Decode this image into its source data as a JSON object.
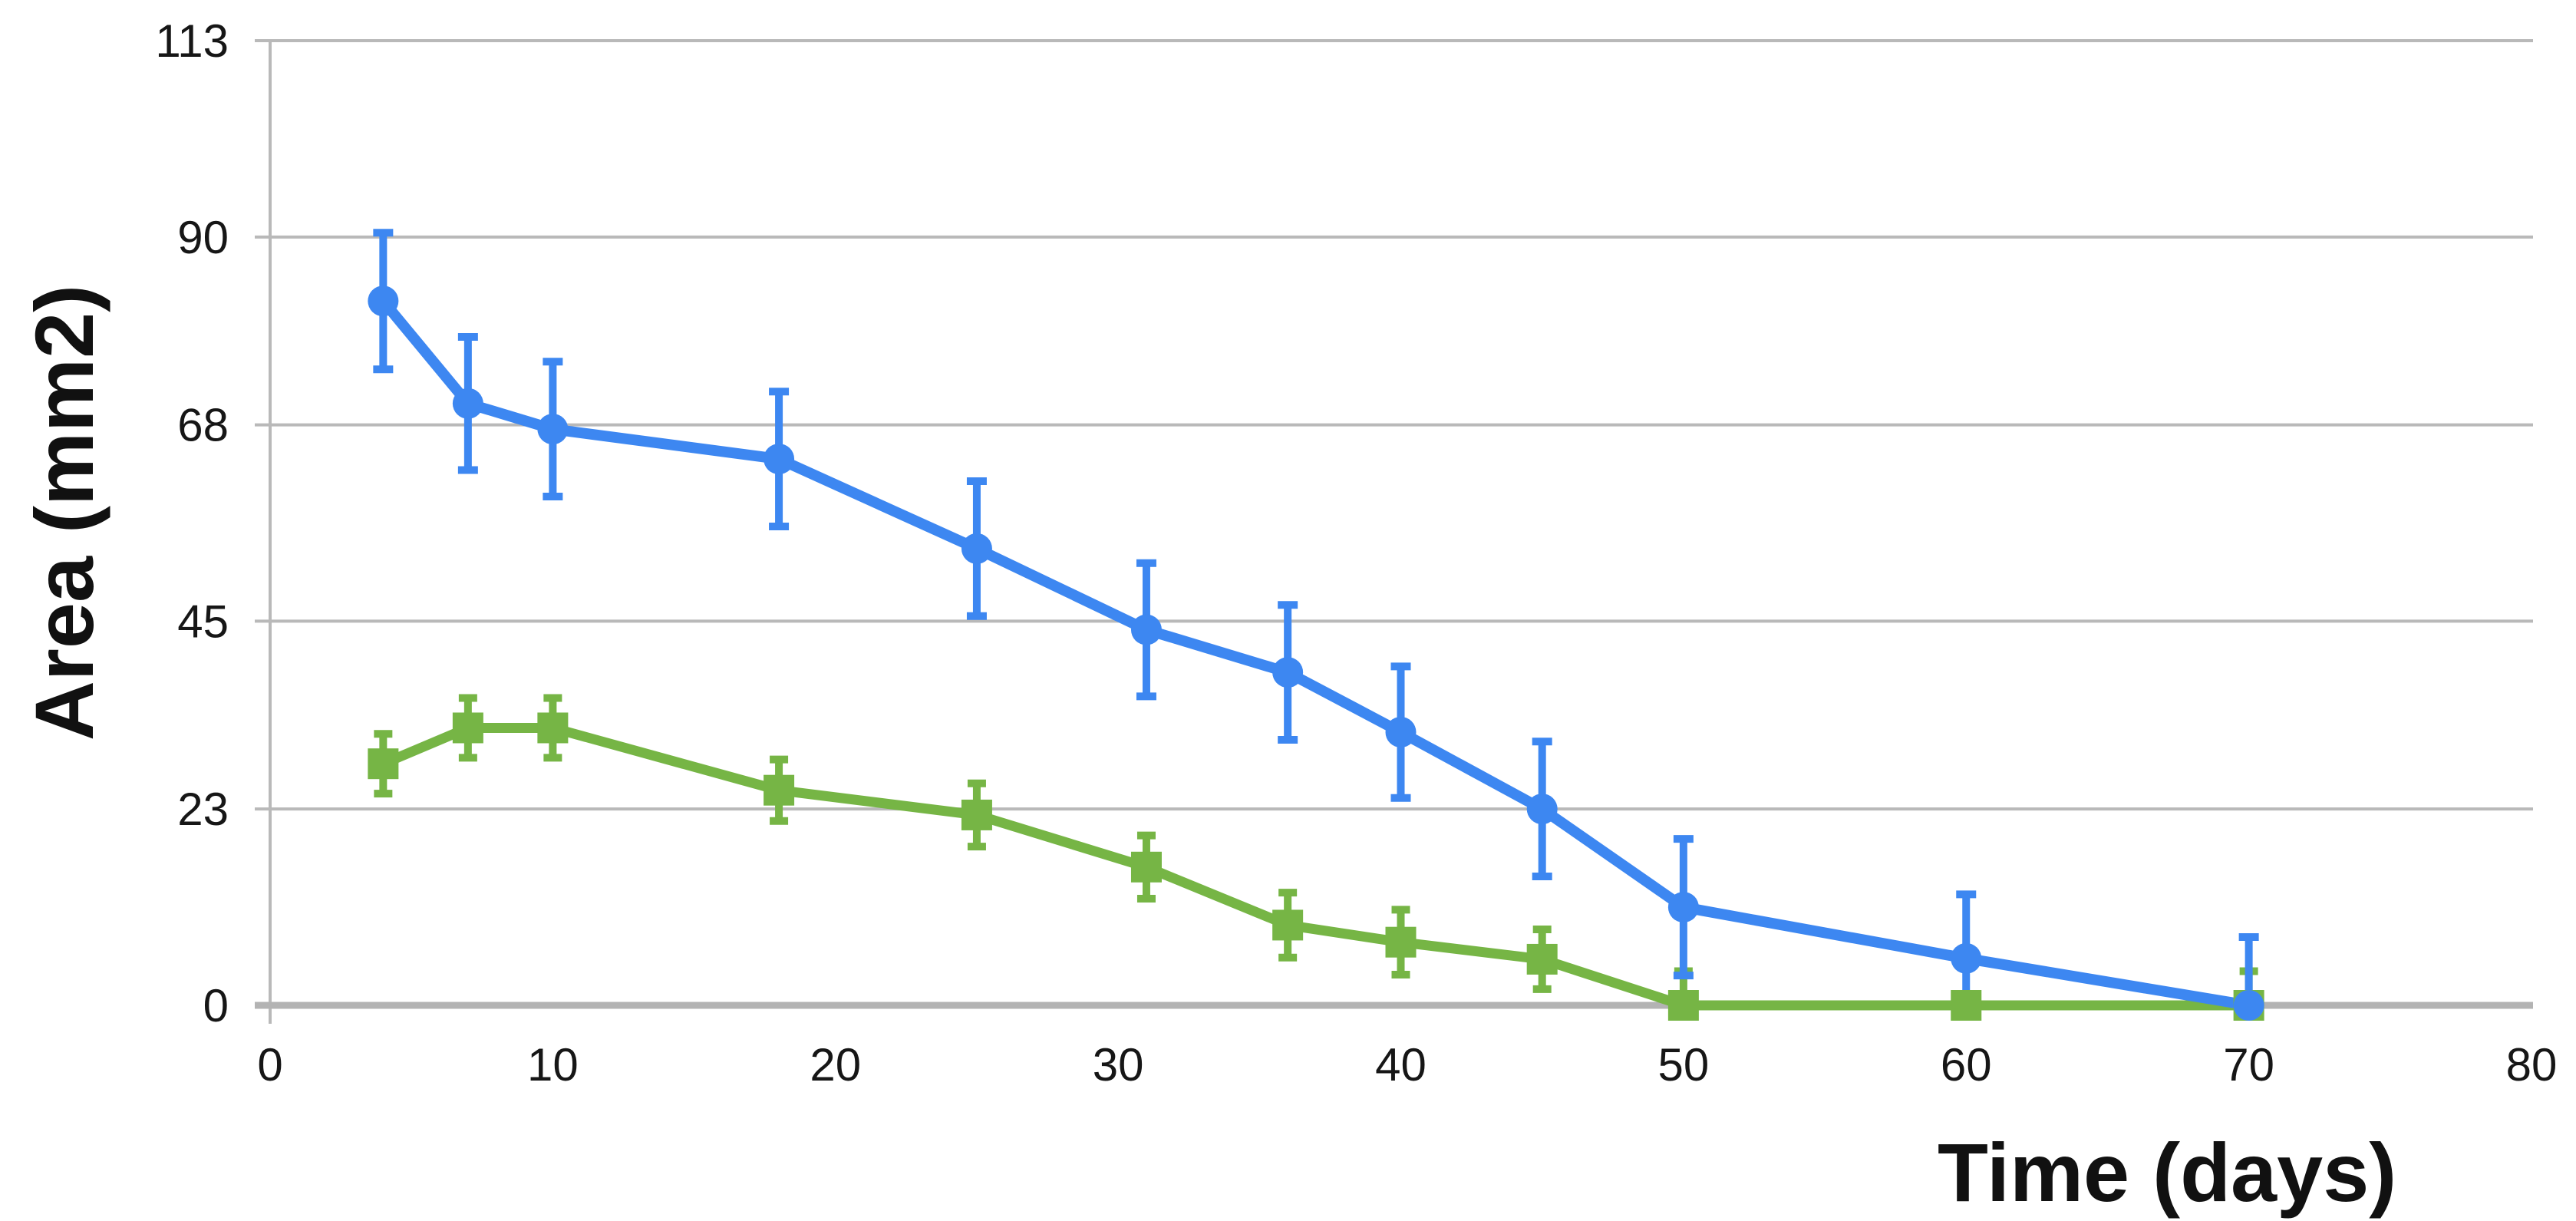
{
  "chart_data": {
    "type": "line",
    "title": "",
    "xlabel": "Time (days)",
    "ylabel": "Area (mm2)",
    "xlim": [
      0,
      80
    ],
    "ylim": [
      0,
      113
    ],
    "x_ticks": [
      0,
      10,
      20,
      30,
      40,
      50,
      60,
      70,
      80
    ],
    "y_ticks": [
      0,
      23,
      45,
      68,
      90,
      113
    ],
    "grid": "horizontal-only",
    "legend_position": "none",
    "background_color": "#ffffff",
    "grid_color": "#b9b9b9",
    "axis_line_color": "#b3b3b3",
    "tick_label_color": "#161616",
    "series": [
      {
        "name": "series-1-blue-circles",
        "marker": "circle",
        "color": "#3d87f1",
        "x": [
          4,
          7,
          10,
          18,
          25,
          31,
          36,
          40,
          45,
          50,
          60,
          70
        ],
        "y": [
          82.5,
          70.5,
          67.5,
          64.0,
          53.5,
          44.0,
          39.0,
          32.0,
          23.0,
          11.5,
          5.5,
          0.0
        ],
        "error": [
          8.0,
          7.8,
          7.9,
          7.9,
          7.9,
          7.8,
          7.9,
          7.7,
          7.9,
          8.0,
          7.5,
          8.0
        ]
      },
      {
        "name": "series-2-green-squares",
        "marker": "square",
        "color": "#76b545",
        "x": [
          4,
          7,
          10,
          18,
          25,
          31,
          36,
          40,
          45,
          50,
          60,
          70
        ],
        "y": [
          28.3,
          32.5,
          32.5,
          25.2,
          22.3,
          16.2,
          9.4,
          7.4,
          5.4,
          0.0,
          0.0,
          0.0
        ],
        "error": [
          3.5,
          3.5,
          3.5,
          3.6,
          3.7,
          3.7,
          3.8,
          3.8,
          3.5,
          4.0,
          0.0,
          4.0
        ]
      }
    ]
  }
}
